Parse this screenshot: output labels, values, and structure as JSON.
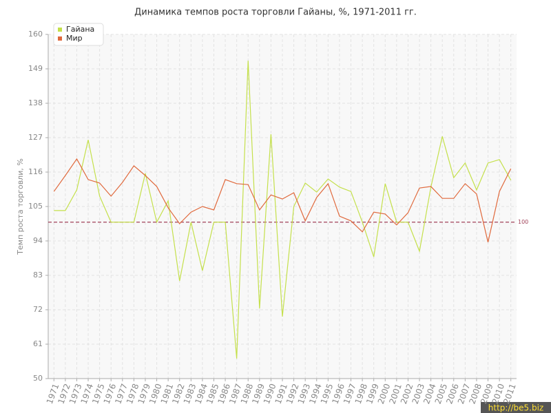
{
  "chart_data": {
    "type": "line",
    "title": "Динамика темпов роста торговли Гайаны, %, 1971-2011 гг.",
    "y_label": "Темп роста торговли, %",
    "x": [
      1971,
      1972,
      1973,
      1974,
      1975,
      1976,
      1977,
      1978,
      1979,
      1980,
      1981,
      1982,
      1983,
      1984,
      1985,
      1986,
      1987,
      1988,
      1989,
      1990,
      1991,
      1992,
      1993,
      1994,
      1995,
      1996,
      1997,
      1998,
      1999,
      2000,
      2001,
      2002,
      2003,
      2004,
      2005,
      2006,
      2007,
      2008,
      2009,
      2010,
      2011
    ],
    "xlim": [
      1970.5,
      2011.5
    ],
    "series": [
      {
        "name": "Гайана",
        "color": "#c4e04a",
        "values": [
          103.7,
          103.7,
          110.3,
          126.3,
          108.3,
          100,
          100,
          100,
          115.6,
          100,
          106.8,
          81.2,
          100,
          84.5,
          100,
          100,
          56.4,
          151.6,
          72.4,
          128.1,
          69.8,
          105,
          112.5,
          109.6,
          113.8,
          111.2,
          109.8,
          100,
          88.9,
          112.3,
          100,
          100,
          90.7,
          111.2,
          127.4,
          114.2,
          118.9,
          110.3,
          118.9,
          120,
          113.4
        ]
      },
      {
        "name": "Мир",
        "color": "#e0693c",
        "values": [
          109.8,
          114.9,
          120.2,
          113.6,
          112.5,
          108.3,
          112.7,
          118,
          114.9,
          111.4,
          104.6,
          99.5,
          103.2,
          105,
          103.9,
          113.6,
          112.3,
          112,
          103.9,
          108.7,
          107.4,
          109.4,
          100.4,
          107.9,
          112.3,
          101.9,
          100.4,
          96.9,
          103.2,
          102.6,
          99.1,
          103,
          110.9,
          111.4,
          107.6,
          107.6,
          112.3,
          109,
          93.6,
          109.8,
          117.1
        ]
      }
    ],
    "ylim": [
      50,
      160
    ],
    "yticks": [
      50,
      61,
      72,
      83,
      94,
      105,
      116,
      127,
      138,
      149,
      160
    ],
    "grid": true,
    "reference_line": 100,
    "reference_color": "#a04058",
    "legend": "top-left",
    "watermark": "http://be5.biz"
  }
}
